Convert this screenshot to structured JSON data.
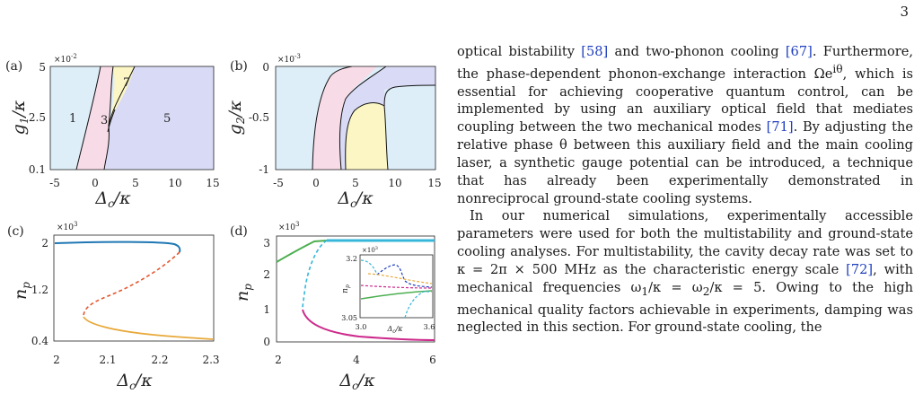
{
  "page_number": "3",
  "colors": {
    "cite": "#1f3fbf",
    "blue": "#1f77b4",
    "orange": "#e4572e",
    "gold": "#e8a93a",
    "magenta": "#cc2b8c",
    "green": "#4caf50",
    "cyan": "#36b6d9"
  },
  "figure": {
    "panels": [
      {
        "label": "(a)",
        "exponent": "×10",
        "exponent_power": "-2",
        "ylabel": "g",
        "ylabel_sub": "1",
        "ylabel_den": "/κ",
        "xlabel": "Δ",
        "xlabel_sub": "c",
        "xlabel_den": "/κ",
        "xticks": [
          "-5",
          "0",
          "5",
          "10",
          "15"
        ],
        "yticks": [
          "5",
          "2.5",
          "0.1"
        ],
        "region_labels": [
          "1",
          "3",
          "5",
          "7"
        ]
      },
      {
        "label": "(b)",
        "exponent": "×10",
        "exponent_power": "-3",
        "ylabel": "g",
        "ylabel_sub": "2",
        "ylabel_den": "/κ",
        "xlabel": "Δ",
        "xlabel_sub": "c",
        "xlabel_den": "/κ",
        "xticks": [
          "-5",
          "0",
          "5",
          "10",
          "15"
        ],
        "yticks": [
          "0",
          "-0.5",
          "-1"
        ]
      },
      {
        "label": "(c)",
        "exponent": "×10",
        "exponent_power": "3",
        "ylabel": "n",
        "ylabel_sub": "p",
        "xlabel": "Δ",
        "xlabel_sub": "c",
        "xlabel_den": "/κ",
        "xticks": [
          "2",
          "2.1",
          "2.2",
          "2.3"
        ],
        "yticks": [
          "2",
          "1.2",
          "0.4"
        ]
      },
      {
        "label": "(d)",
        "exponent": "×10",
        "exponent_power": "3",
        "ylabel": "n",
        "ylabel_sub": "p",
        "xlabel": "Δ",
        "xlabel_sub": "c",
        "xlabel_den": "/κ",
        "xticks": [
          "2",
          "4",
          "6"
        ],
        "yticks": [
          "3",
          "2",
          "1",
          "0"
        ],
        "inset": {
          "exponent": "×10",
          "exponent_power": "3",
          "ylabel": "n",
          "ylabel_sub": "p",
          "xlabel": "Δ",
          "xlabel_sub": "c",
          "xlabel_den": "/κ",
          "xticks": [
            "3.0",
            "3.6"
          ],
          "yticks": [
            "3.2",
            "3.05"
          ]
        }
      }
    ]
  },
  "text": {
    "p1": [
      {
        "t": "optical bistability "
      },
      {
        "t": "[58]",
        "c": true
      },
      {
        "t": " and two-phonon cooling "
      },
      {
        "t": "[67]",
        "c": true
      },
      {
        "t": ". Furthermore, the phase-dependent phonon-exchange interaction Ωe"
      },
      {
        "t": "iθ",
        "sup": true
      },
      {
        "t": ", which is essential for achieving cooperative quantum control, can be implemented by using an auxiliary optical field that mediates coupling between the two mechanical modes "
      },
      {
        "t": "[71]",
        "c": true
      },
      {
        "t": ". By adjusting the relative phase θ between this auxiliary field and the main cooling laser, a synthetic gauge potential can be introduced, a technique that has already been experimentally demonstrated in nonreciprocal ground-state cooling systems."
      }
    ],
    "p2": [
      {
        "t": "In our numerical simulations, experimentally accessible parameters were used for both the multistability and ground-state cooling analyses. For multistability, the cavity decay rate was set to κ = 2π × 500 MHz as the characteristic energy scale "
      },
      {
        "t": "[72]",
        "c": true
      },
      {
        "t": ", with mechanical frequencies ω"
      },
      {
        "t": "1",
        "sub": true
      },
      {
        "t": "/κ = ω"
      },
      {
        "t": "2",
        "sub": true
      },
      {
        "t": "/κ = 5. Owing to the high mechanical quality factors achievable in experiments, damping was neglected in this section. For ground-state cooling, the"
      }
    ]
  }
}
